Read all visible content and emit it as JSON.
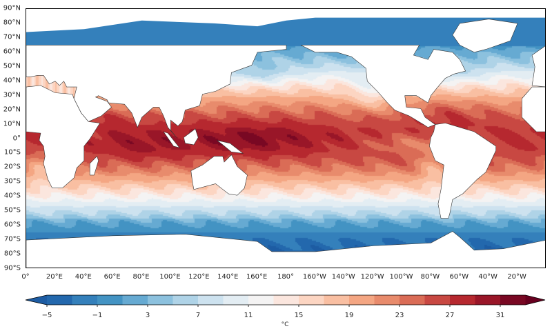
{
  "map": {
    "variable": "sea surface temperature",
    "projection": "PlateCarree, central longitude 180",
    "lat_labels": [
      "90°N",
      "80°N",
      "70°N",
      "60°N",
      "50°N",
      "40°N",
      "30°N",
      "20°N",
      "10°N",
      "0°",
      "10°S",
      "20°S",
      "30°S",
      "40°S",
      "50°S",
      "60°S",
      "70°S",
      "80°S",
      "90°S"
    ],
    "lon_labels": [
      "0°",
      "20°E",
      "40°E",
      "60°E",
      "80°E",
      "100°E",
      "120°E",
      "140°E",
      "160°E",
      "180°",
      "160°W",
      "140°W",
      "120°W",
      "100°W",
      "80°W",
      "60°W",
      "40°W",
      "20°W"
    ]
  },
  "colorbar": {
    "unit": "°C",
    "levels_min": -5,
    "levels_max": 33,
    "level_step": 2,
    "extend": "both",
    "tick_labels": [
      "−5",
      "−1",
      "3",
      "7",
      "11",
      "15",
      "19",
      "23",
      "27",
      "31"
    ],
    "colors": [
      "#2368ad",
      "#3480bb",
      "#4393c3",
      "#66aad2",
      "#8cc1de",
      "#afd3e7",
      "#cde2ef",
      "#e3edf3",
      "#f4f3f3",
      "#fbe6de",
      "#fcd5c2",
      "#f9bfa2",
      "#f4a683",
      "#e88b6c",
      "#da6c56",
      "#c84842",
      "#b6282f",
      "#991628",
      "#790823"
    ],
    "under_color": "#1d5ca3",
    "over_color": "#67001f"
  }
}
